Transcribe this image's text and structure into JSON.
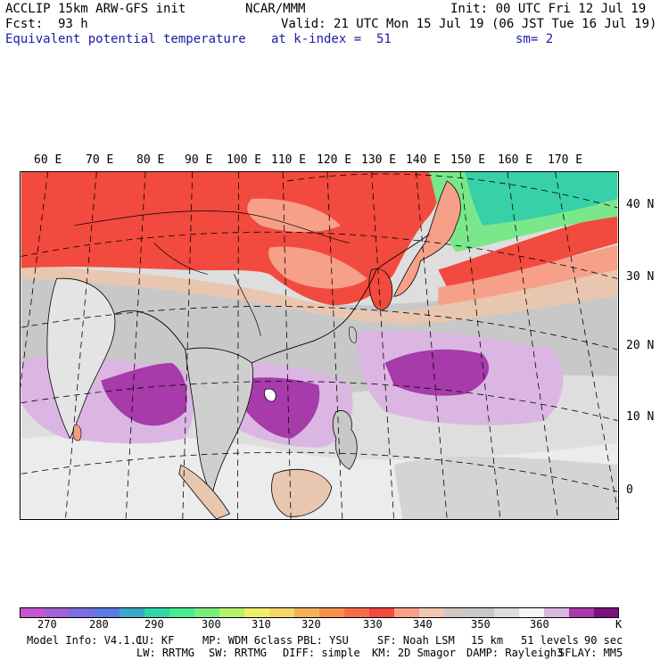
{
  "header": {
    "model_line": "ACCLIP 15km ARW-GFS init",
    "org": "NCAR/MMM",
    "init": "Init: 00 UTC Fri 12 Jul 19",
    "fcst_label": "Fcst:",
    "fcst_value": "93 h",
    "valid": "Valid: 21 UTC Mon 15 Jul 19 (06 JST Tue 16 Jul 19)",
    "field": "Equivalent potential temperature",
    "level": "at k-index =  51",
    "smooth": "sm= 2"
  },
  "map": {
    "lon_labels": [
      "60 E",
      "70 E",
      "80 E",
      "90 E",
      "100 E",
      "110 E",
      "120 E",
      "130 E",
      "140 E",
      "150 E",
      "160 E",
      "170 E"
    ],
    "lat_labels": [
      "40 N",
      "30 N",
      "20 N",
      "10 N",
      "0"
    ],
    "colors": {
      "very_hot": "#f24a3e",
      "hot": "#f6a08a",
      "warm_tan": "#e8c6b0",
      "gray": "#c8c8c8",
      "light_gray": "#dedede",
      "white": "#f2f2f2",
      "pale_purple": "#dcb6e2",
      "purple": "#a63ba9",
      "teal": "#38d0a8",
      "green": "#7ae88a"
    }
  },
  "colorbar": {
    "colors": [
      "#c656cf",
      "#a162d9",
      "#7a6ee2",
      "#5a7ae4",
      "#3aa8c8",
      "#30d6a6",
      "#48ea92",
      "#7aee7a",
      "#b8f06a",
      "#eef06a",
      "#f6d86a",
      "#f6b05a",
      "#f6904e",
      "#f66e48",
      "#f24a3e",
      "#f6a08a",
      "#f0c8b0",
      "#d0c8c4",
      "#c8c8c8",
      "#dcdcdc",
      "#f4f4f4",
      "#dcb6e2",
      "#a63ba9",
      "#7a127e"
    ],
    "ticks": [
      "270",
      "280",
      "290",
      "300",
      "310",
      "320",
      "330",
      "340",
      "350",
      "360"
    ],
    "unit": "K"
  },
  "footer": {
    "line1": [
      "Model Info: V4.1.1",
      "CU: KF",
      "MP: WDM 6class",
      "PBL: YSU",
      "SF: Noah LSM",
      "15 km",
      "51 levels",
      "90 sec"
    ],
    "line2": [
      "LW: RRTMG",
      "SW: RRTMG",
      "DIFF: simple",
      "KM: 2D Smagor",
      "DAMP: Rayleigh3",
      "SFLAY: MM5"
    ]
  }
}
